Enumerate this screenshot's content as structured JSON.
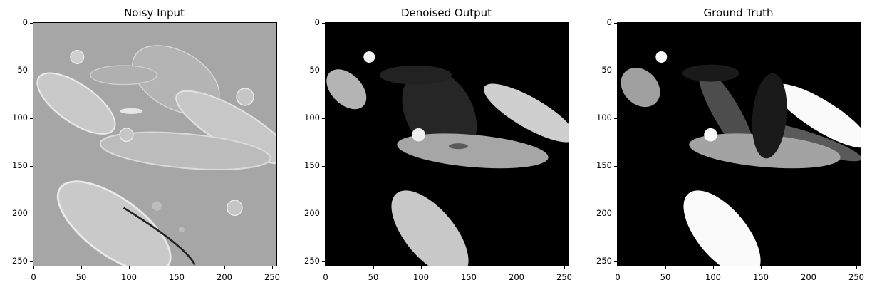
{
  "panels": [
    {
      "title": "Noisy Input"
    },
    {
      "title": "Denoised Output"
    },
    {
      "title": "Ground Truth"
    }
  ],
  "axes": {
    "x_ticks": [
      "0",
      "50",
      "100",
      "150",
      "200",
      "250"
    ],
    "y_ticks": [
      "0",
      "50",
      "100",
      "150",
      "200",
      "250"
    ],
    "range": [
      0,
      255
    ]
  },
  "colors": {
    "noisy_background": "#a6a6a6",
    "dark_background": "#000000"
  }
}
